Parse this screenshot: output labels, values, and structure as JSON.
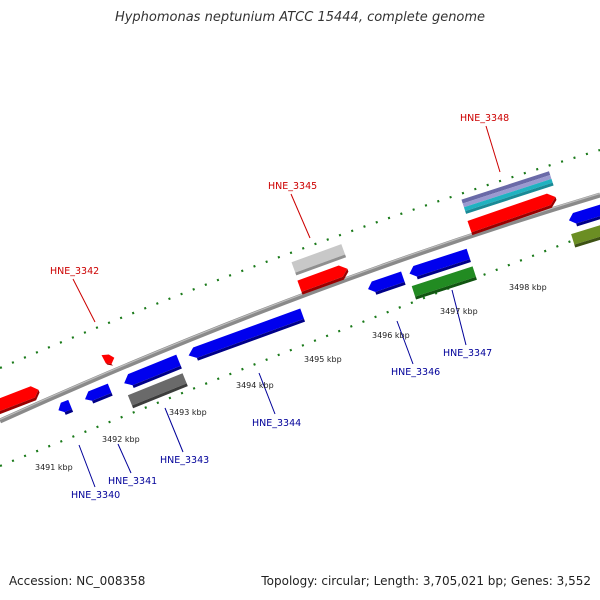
{
  "title": "Hyphomonas neptunium ATCC 15444, complete genome",
  "footer": {
    "accession": "Accession: NC_008358",
    "summary": "Topology: circular; Length: 3,705,021 bp; Genes: 3,552"
  },
  "colors": {
    "forward_label": "#cc0000",
    "reverse_label": "#000099",
    "tick": "#1a7a1a",
    "backbone": "#808080",
    "red": "#ff0000",
    "blue": "#0000ee",
    "gray": "#6a6a6a",
    "lightgray": "#c8c8c8",
    "green": "#228b22",
    "olive": "#6b8e23",
    "cyan": "#20b2c0",
    "slate": "#6a6aa8"
  },
  "ticks": [
    "3491 kbp",
    "3492 kbp",
    "3493 kbp",
    "3494 kbp",
    "3495 kbp",
    "3496 kbp",
    "3497 kbp",
    "3498 kbp"
  ],
  "genes": [
    {
      "name": "HNE_3340",
      "strand": "reverse"
    },
    {
      "name": "HNE_3341",
      "strand": "reverse"
    },
    {
      "name": "HNE_3342",
      "strand": "forward"
    },
    {
      "name": "HNE_3343",
      "strand": "reverse"
    },
    {
      "name": "HNE_3344",
      "strand": "reverse"
    },
    {
      "name": "HNE_3345",
      "strand": "forward"
    },
    {
      "name": "HNE_3346",
      "strand": "reverse"
    },
    {
      "name": "HNE_3347",
      "strand": "reverse"
    },
    {
      "name": "HNE_3348",
      "strand": "forward"
    }
  ]
}
